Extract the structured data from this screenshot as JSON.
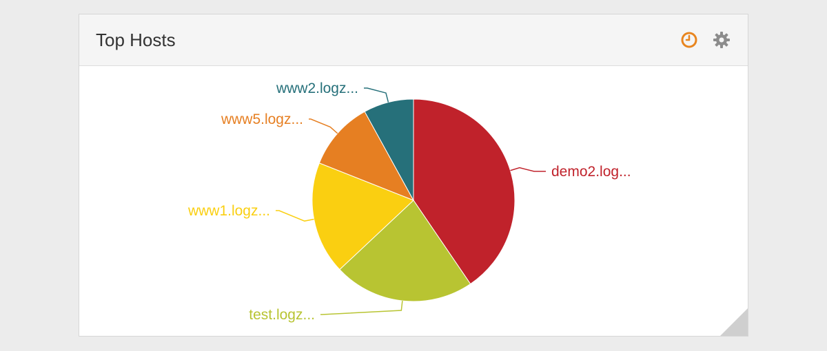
{
  "panel": {
    "title": "Top Hosts"
  },
  "icons": {
    "time": "clock-icon",
    "settings": "gear-icon",
    "resize": "resize-handle-icon"
  },
  "colors": {
    "accent_clock": "#e8851f",
    "gear": "#8c8c8c"
  },
  "chart_data": {
    "type": "pie",
    "title": "Top Hosts",
    "start_angle": 0,
    "direction": "clockwise",
    "slices": [
      {
        "label": "demo2.log...",
        "value": 40.5,
        "color": "#c0222b"
      },
      {
        "label": "test.logz...",
        "value": 22.5,
        "color": "#b8c432"
      },
      {
        "label": "www1.logz...",
        "value": 18.0,
        "color": "#facf11"
      },
      {
        "label": "www5.logz...",
        "value": 11.0,
        "color": "#e67f22"
      },
      {
        "label": "www2.logz...",
        "value": 8.0,
        "color": "#26707a"
      }
    ]
  }
}
